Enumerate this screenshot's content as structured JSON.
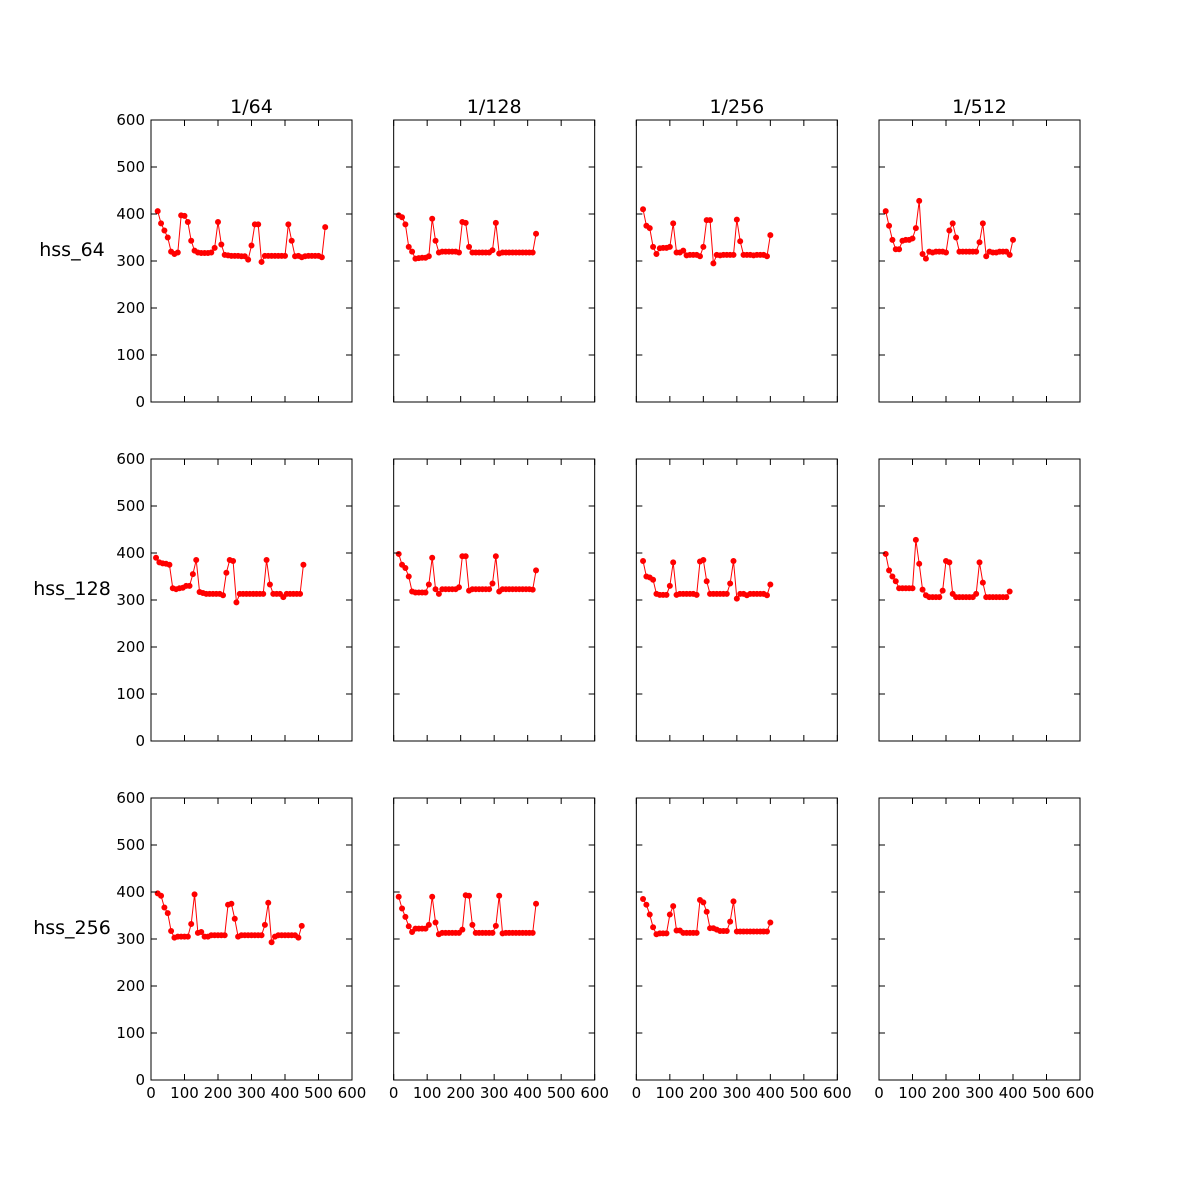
{
  "chart_data": [
    {
      "type": "line",
      "title": "1/64",
      "ylabel": "hss_64",
      "x": [
        20,
        30,
        40,
        50,
        60,
        70,
        80,
        90,
        100,
        110,
        120,
        130,
        140,
        150,
        160,
        170,
        180,
        190,
        200,
        210,
        220,
        230,
        240,
        250,
        260,
        270,
        280,
        290,
        300,
        310,
        320,
        330,
        340,
        350,
        360,
        370,
        380,
        390,
        400,
        410,
        420,
        430,
        440,
        450,
        460,
        470,
        480,
        490,
        500,
        510,
        520
      ],
      "series": [
        {
          "color": "#ff0000",
          "values": [
            406,
            380,
            365,
            350,
            320,
            315,
            318,
            397,
            396,
            383,
            343,
            322,
            318,
            317,
            317,
            317,
            318,
            328,
            383,
            335,
            313,
            312,
            311,
            311,
            311,
            310,
            310,
            303,
            333,
            378,
            378,
            298,
            311,
            311,
            311,
            311,
            311,
            311,
            311,
            378,
            343,
            310,
            311,
            308,
            310,
            311,
            311,
            311,
            311,
            308,
            372
          ]
        }
      ],
      "xlim": [
        0,
        600
      ],
      "ylim": [
        0,
        600
      ],
      "xticks": [
        0,
        100,
        200,
        300,
        400,
        500,
        600
      ],
      "yticks": [
        0,
        100,
        200,
        300,
        400,
        500,
        600
      ]
    },
    {
      "type": "line",
      "title": "1/128",
      "x": [
        15,
        25,
        35,
        45,
        55,
        65,
        75,
        85,
        95,
        105,
        115,
        125,
        135,
        145,
        155,
        165,
        175,
        185,
        195,
        205,
        215,
        225,
        235,
        245,
        255,
        265,
        275,
        285,
        295,
        305,
        315,
        325,
        335,
        345,
        355,
        365,
        375,
        385,
        395,
        405,
        415,
        425
      ],
      "series": [
        {
          "color": "#ff0000",
          "values": [
            397,
            393,
            378,
            330,
            320,
            305,
            306,
            307,
            307,
            310,
            390,
            343,
            318,
            320,
            320,
            320,
            320,
            320,
            318,
            383,
            381,
            330,
            318,
            318,
            318,
            318,
            318,
            318,
            323,
            381,
            316,
            318,
            318,
            318,
            318,
            318,
            318,
            318,
            318,
            318,
            318,
            358
          ]
        }
      ],
      "xlim": [
        0,
        600
      ],
      "ylim": [
        0,
        600
      ],
      "xticks": [
        0,
        100,
        200,
        300,
        400,
        500,
        600
      ],
      "yticks": [
        0,
        100,
        200,
        300,
        400,
        500,
        600
      ]
    },
    {
      "type": "line",
      "title": "1/256",
      "x": [
        20,
        30,
        40,
        50,
        60,
        70,
        80,
        90,
        100,
        110,
        120,
        130,
        140,
        150,
        160,
        170,
        180,
        190,
        200,
        210,
        220,
        230,
        240,
        250,
        260,
        270,
        280,
        290,
        300,
        310,
        320,
        330,
        340,
        350,
        360,
        370,
        380,
        390,
        400
      ],
      "series": [
        {
          "color": "#ff0000",
          "values": [
            410,
            375,
            370,
            330,
            315,
            327,
            328,
            328,
            330,
            380,
            318,
            318,
            322,
            312,
            313,
            313,
            313,
            310,
            330,
            387,
            387,
            295,
            313,
            312,
            313,
            313,
            313,
            313,
            388,
            342,
            313,
            313,
            313,
            312,
            313,
            313,
            313,
            310,
            355
          ]
        }
      ],
      "xlim": [
        0,
        600
      ],
      "ylim": [
        0,
        600
      ],
      "xticks": [
        0,
        100,
        200,
        300,
        400,
        500,
        600
      ],
      "yticks": [
        0,
        100,
        200,
        300,
        400,
        500,
        600
      ]
    },
    {
      "type": "line",
      "title": "1/512",
      "x": [
        20,
        30,
        40,
        50,
        60,
        70,
        80,
        90,
        100,
        110,
        120,
        130,
        140,
        150,
        160,
        170,
        180,
        190,
        200,
        210,
        220,
        230,
        240,
        250,
        260,
        270,
        280,
        290,
        300,
        310,
        320,
        330,
        340,
        350,
        360,
        370,
        380,
        390,
        400
      ],
      "series": [
        {
          "color": "#ff0000",
          "values": [
            406,
            375,
            345,
            325,
            325,
            343,
            345,
            345,
            348,
            370,
            428,
            315,
            305,
            320,
            318,
            320,
            320,
            320,
            318,
            365,
            380,
            350,
            320,
            320,
            320,
            320,
            320,
            320,
            340,
            380,
            310,
            320,
            318,
            318,
            320,
            320,
            320,
            313,
            345
          ]
        }
      ],
      "xlim": [
        0,
        600
      ],
      "ylim": [
        0,
        600
      ],
      "xticks": [
        0,
        100,
        200,
        300,
        400,
        500,
        600
      ],
      "yticks": [
        0,
        100,
        200,
        300,
        400,
        500,
        600
      ]
    },
    {
      "type": "line",
      "ylabel": "hss_128",
      "x": [
        15,
        25,
        35,
        45,
        55,
        65,
        75,
        85,
        95,
        105,
        115,
        125,
        135,
        145,
        155,
        165,
        175,
        185,
        195,
        205,
        215,
        225,
        235,
        245,
        255,
        265,
        275,
        285,
        295,
        305,
        315,
        325,
        335,
        345,
        355,
        365,
        375,
        385,
        395,
        405,
        415,
        425,
        435,
        445,
        455
      ],
      "series": [
        {
          "color": "#ff0000",
          "values": [
            390,
            380,
            378,
            377,
            375,
            325,
            323,
            325,
            326,
            330,
            330,
            355,
            385,
            317,
            315,
            313,
            313,
            313,
            313,
            313,
            310,
            358,
            385,
            383,
            295,
            313,
            313,
            313,
            313,
            313,
            313,
            313,
            313,
            385,
            333,
            313,
            313,
            313,
            306,
            313,
            313,
            313,
            313,
            313,
            375
          ]
        }
      ],
      "xlim": [
        0,
        600
      ],
      "ylim": [
        0,
        600
      ],
      "xticks": [
        0,
        100,
        200,
        300,
        400,
        500,
        600
      ],
      "yticks": [
        0,
        100,
        200,
        300,
        400,
        500,
        600
      ]
    },
    {
      "type": "line",
      "x": [
        15,
        25,
        35,
        45,
        55,
        65,
        75,
        85,
        95,
        105,
        115,
        125,
        135,
        145,
        155,
        165,
        175,
        185,
        195,
        205,
        215,
        225,
        235,
        245,
        255,
        265,
        275,
        285,
        295,
        305,
        315,
        325,
        335,
        345,
        355,
        365,
        375,
        385,
        395,
        405,
        415,
        425
      ],
      "series": [
        {
          "color": "#ff0000",
          "values": [
            398,
            375,
            368,
            350,
            318,
            316,
            316,
            316,
            316,
            333,
            390,
            323,
            313,
            323,
            323,
            323,
            323,
            323,
            327,
            393,
            393,
            320,
            323,
            323,
            323,
            323,
            323,
            323,
            335,
            393,
            318,
            323,
            323,
            323,
            323,
            323,
            323,
            323,
            323,
            323,
            322,
            363
          ]
        }
      ],
      "xlim": [
        0,
        600
      ],
      "ylim": [
        0,
        600
      ],
      "xticks": [
        0,
        100,
        200,
        300,
        400,
        500,
        600
      ],
      "yticks": [
        0,
        100,
        200,
        300,
        400,
        500,
        600
      ]
    },
    {
      "type": "line",
      "x": [
        20,
        30,
        40,
        50,
        60,
        70,
        80,
        90,
        100,
        110,
        120,
        130,
        140,
        150,
        160,
        170,
        180,
        190,
        200,
        210,
        220,
        230,
        240,
        250,
        260,
        270,
        280,
        290,
        300,
        310,
        320,
        330,
        340,
        350,
        360,
        370,
        380,
        390,
        400
      ],
      "series": [
        {
          "color": "#ff0000",
          "values": [
            383,
            350,
            348,
            343,
            313,
            311,
            311,
            311,
            330,
            380,
            311,
            313,
            313,
            313,
            313,
            313,
            311,
            382,
            385,
            340,
            313,
            313,
            313,
            313,
            313,
            313,
            335,
            383,
            303,
            313,
            313,
            310,
            313,
            313,
            313,
            313,
            313,
            310,
            333
          ]
        }
      ],
      "xlim": [
        0,
        600
      ],
      "ylim": [
        0,
        600
      ],
      "xticks": [
        0,
        100,
        200,
        300,
        400,
        500,
        600
      ],
      "yticks": [
        0,
        100,
        200,
        300,
        400,
        500,
        600
      ]
    },
    {
      "type": "line",
      "x": [
        20,
        30,
        40,
        50,
        60,
        70,
        80,
        90,
        100,
        110,
        120,
        130,
        140,
        150,
        160,
        170,
        180,
        190,
        200,
        210,
        220,
        230,
        240,
        250,
        260,
        270,
        280,
        290,
        300,
        310,
        320,
        330,
        340,
        350,
        360,
        370,
        380,
        390
      ],
      "series": [
        {
          "color": "#ff0000",
          "values": [
            398,
            363,
            350,
            340,
            325,
            325,
            325,
            325,
            325,
            428,
            377,
            322,
            310,
            306,
            306,
            306,
            306,
            320,
            383,
            380,
            313,
            306,
            306,
            306,
            306,
            306,
            306,
            313,
            380,
            337,
            306,
            306,
            306,
            306,
            306,
            306,
            306,
            318
          ]
        }
      ],
      "xlim": [
        0,
        600
      ],
      "ylim": [
        0,
        600
      ],
      "xticks": [
        0,
        100,
        200,
        300,
        400,
        500,
        600
      ],
      "yticks": [
        0,
        100,
        200,
        300,
        400,
        500,
        600
      ]
    },
    {
      "type": "line",
      "ylabel": "hss_256",
      "x": [
        20,
        30,
        40,
        50,
        60,
        70,
        80,
        90,
        100,
        110,
        120,
        130,
        140,
        150,
        160,
        170,
        180,
        190,
        200,
        210,
        220,
        230,
        240,
        250,
        260,
        270,
        280,
        290,
        300,
        310,
        320,
        330,
        340,
        350,
        360,
        370,
        380,
        390,
        400,
        410,
        420,
        430,
        440,
        450
      ],
      "series": [
        {
          "color": "#ff0000",
          "values": [
            397,
            392,
            367,
            355,
            317,
            303,
            305,
            305,
            305,
            305,
            332,
            395,
            313,
            315,
            305,
            305,
            308,
            308,
            308,
            308,
            308,
            373,
            375,
            343,
            305,
            308,
            308,
            308,
            308,
            308,
            308,
            308,
            330,
            377,
            293,
            305,
            308,
            308,
            308,
            308,
            308,
            308,
            303,
            328
          ]
        }
      ],
      "xlim": [
        0,
        600
      ],
      "ylim": [
        0,
        600
      ],
      "xticks": [
        0,
        100,
        200,
        300,
        400,
        500,
        600
      ],
      "yticks": [
        0,
        100,
        200,
        300,
        400,
        500,
        600
      ]
    },
    {
      "type": "line",
      "x": [
        15,
        25,
        35,
        45,
        55,
        65,
        75,
        85,
        95,
        105,
        115,
        125,
        135,
        145,
        155,
        165,
        175,
        185,
        195,
        205,
        215,
        225,
        235,
        245,
        255,
        265,
        275,
        285,
        295,
        305,
        315,
        325,
        335,
        345,
        355,
        365,
        375,
        385,
        395,
        405,
        415,
        425
      ],
      "series": [
        {
          "color": "#ff0000",
          "values": [
            390,
            365,
            347,
            327,
            315,
            322,
            322,
            322,
            322,
            330,
            390,
            335,
            310,
            313,
            313,
            313,
            313,
            313,
            313,
            320,
            393,
            392,
            330,
            313,
            313,
            313,
            313,
            313,
            313,
            328,
            392,
            312,
            313,
            313,
            313,
            313,
            313,
            313,
            313,
            313,
            313,
            375
          ]
        }
      ],
      "xlim": [
        0,
        600
      ],
      "ylim": [
        0,
        600
      ],
      "xticks": [
        0,
        100,
        200,
        300,
        400,
        500,
        600
      ],
      "yticks": [
        0,
        100,
        200,
        300,
        400,
        500,
        600
      ]
    },
    {
      "type": "line",
      "x": [
        20,
        30,
        40,
        50,
        60,
        70,
        80,
        90,
        100,
        110,
        120,
        130,
        140,
        150,
        160,
        170,
        180,
        190,
        200,
        210,
        220,
        230,
        240,
        250,
        260,
        270,
        280,
        290,
        300,
        310,
        320,
        330,
        340,
        350,
        360,
        370,
        380,
        390,
        400
      ],
      "series": [
        {
          "color": "#ff0000",
          "values": [
            385,
            373,
            352,
            325,
            310,
            312,
            312,
            312,
            352,
            370,
            318,
            318,
            313,
            313,
            313,
            313,
            313,
            383,
            378,
            358,
            323,
            323,
            320,
            317,
            317,
            317,
            337,
            380,
            316,
            316,
            316,
            316,
            316,
            316,
            316,
            316,
            316,
            316,
            335
          ]
        }
      ],
      "xlim": [
        0,
        600
      ],
      "ylim": [
        0,
        600
      ],
      "xticks": [
        0,
        100,
        200,
        300,
        400,
        500,
        600
      ],
      "yticks": [
        0,
        100,
        200,
        300,
        400,
        500,
        600
      ]
    },
    {
      "type": "line",
      "x": [],
      "series": [
        {
          "color": "#ff0000",
          "values": []
        }
      ],
      "xlim": [
        0,
        600
      ],
      "ylim": [
        0,
        600
      ],
      "xticks": [
        0,
        100,
        200,
        300,
        400,
        500,
        600
      ],
      "yticks": [
        0,
        100,
        200,
        300,
        400,
        500,
        600
      ]
    }
  ]
}
